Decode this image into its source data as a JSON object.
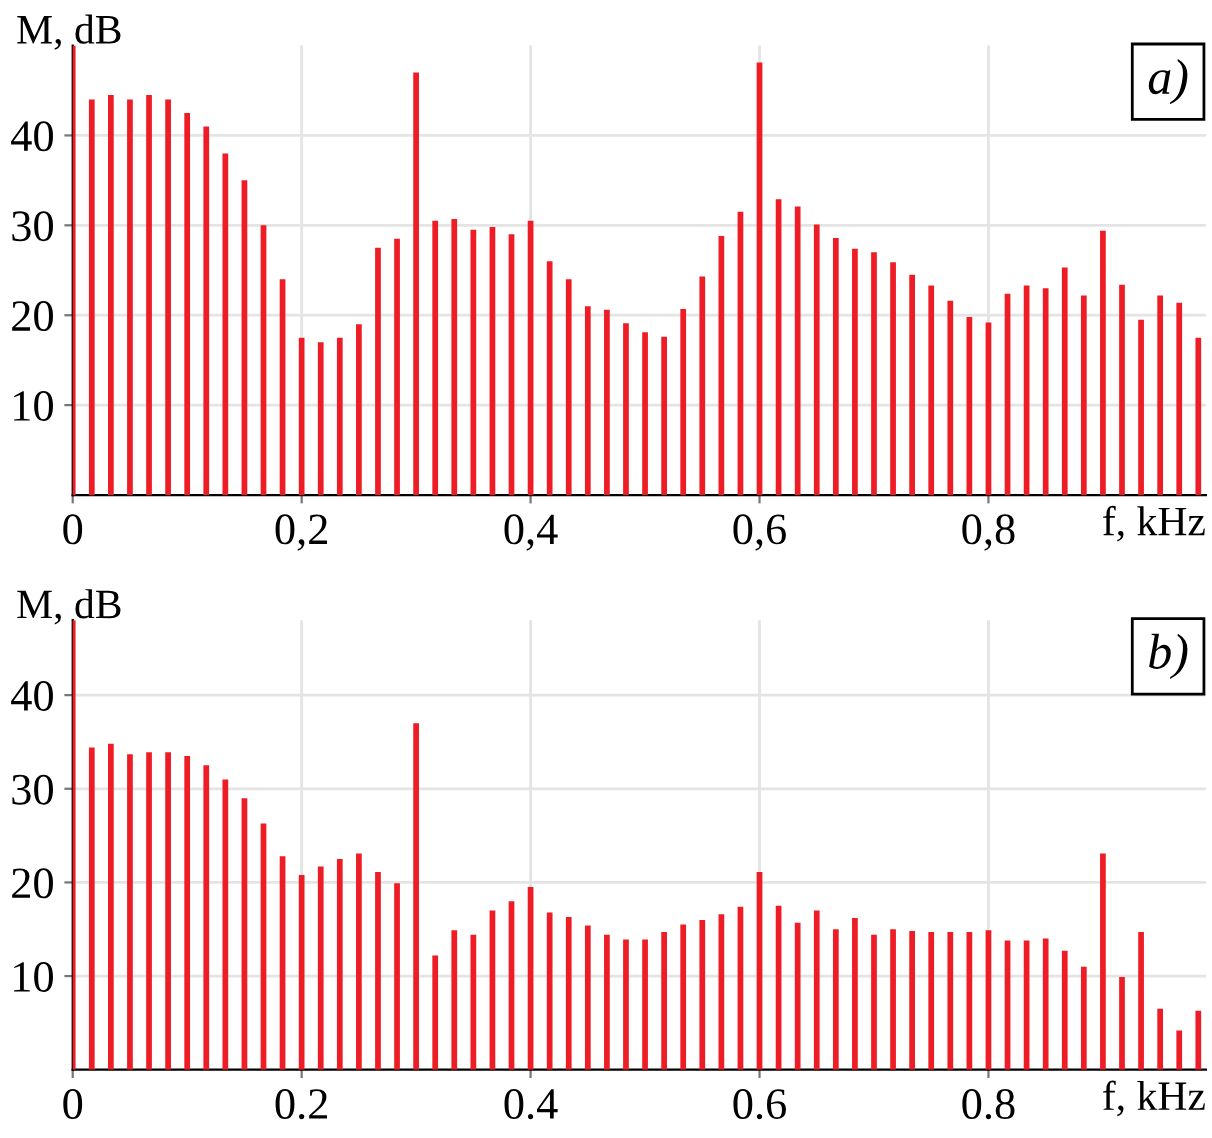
{
  "chart_data": [
    {
      "type": "bar",
      "xlabel": "f, kHz",
      "ylabel": "M, dB",
      "annotations": [
        "a)"
      ],
      "x": [
        0,
        0.01667,
        0.03333,
        0.05,
        0.06667,
        0.08333,
        0.1,
        0.11667,
        0.13333,
        0.15,
        0.16667,
        0.18333,
        0.2,
        0.21667,
        0.23333,
        0.25,
        0.26667,
        0.28333,
        0.3,
        0.31667,
        0.33333,
        0.35,
        0.36667,
        0.38333,
        0.4,
        0.41667,
        0.43333,
        0.45,
        0.46667,
        0.48333,
        0.5,
        0.51667,
        0.53333,
        0.55,
        0.56667,
        0.58333,
        0.6,
        0.61667,
        0.63333,
        0.65,
        0.66667,
        0.68333,
        0.7,
        0.71667,
        0.73333,
        0.75,
        0.76667,
        0.78333,
        0.8,
        0.81667,
        0.83333,
        0.85,
        0.86667,
        0.88333,
        0.9,
        0.91667,
        0.93333,
        0.95,
        0.96667,
        0.98333
      ],
      "values": [
        50,
        44,
        44.5,
        44,
        44.5,
        44,
        42.5,
        41,
        38,
        35,
        30,
        24,
        17.5,
        17,
        17.5,
        19,
        27.5,
        28.5,
        47,
        30.5,
        30.7,
        29.5,
        29.8,
        29,
        30.5,
        26,
        24,
        21,
        20.6,
        19.1,
        18.1,
        17.6,
        20.7,
        24.3,
        28.8,
        31.5,
        48.1,
        32.9,
        32.1,
        30.1,
        28.6,
        27.4,
        27,
        25.9,
        24.5,
        23.3,
        21.6,
        19.8,
        19.2,
        22.4,
        23.3,
        23,
        25.3,
        22.2,
        29.4,
        23.4,
        19.5,
        22.2,
        21.4,
        17.5
      ],
      "color": "#ee1c25",
      "xlim": [
        0,
        0.99
      ],
      "ylim": [
        0,
        50
      ],
      "xticks": [
        0,
        {
          "value": 0.2,
          "label": "0,2"
        },
        {
          "value": 0.4,
          "label": "0,4"
        },
        {
          "value": 0.6,
          "label": "0,6"
        },
        {
          "value": 0.8,
          "label": "0,8"
        }
      ],
      "yticks": [
        10,
        20,
        30,
        40
      ],
      "grid": true
    },
    {
      "type": "bar",
      "xlabel": "f, kHz",
      "ylabel": "M, dB",
      "annotations": [
        "b)"
      ],
      "x": [
        0,
        0.01667,
        0.03333,
        0.05,
        0.06667,
        0.08333,
        0.1,
        0.11667,
        0.13333,
        0.15,
        0.16667,
        0.18333,
        0.2,
        0.21667,
        0.23333,
        0.25,
        0.26667,
        0.28333,
        0.3,
        0.31667,
        0.33333,
        0.35,
        0.36667,
        0.38333,
        0.4,
        0.41667,
        0.43333,
        0.45,
        0.46667,
        0.48333,
        0.5,
        0.51667,
        0.53333,
        0.55,
        0.56667,
        0.58333,
        0.6,
        0.61667,
        0.63333,
        0.65,
        0.66667,
        0.68333,
        0.7,
        0.71667,
        0.73333,
        0.75,
        0.76667,
        0.78333,
        0.8,
        0.81667,
        0.83333,
        0.85,
        0.86667,
        0.88333,
        0.9,
        0.91667,
        0.93333,
        0.95,
        0.96667,
        0.98333
      ],
      "values": [
        48,
        34.4,
        34.8,
        33.7,
        33.9,
        33.9,
        33.5,
        32.5,
        31,
        29,
        26.3,
        22.8,
        20.8,
        21.7,
        22.5,
        23.1,
        21.1,
        19.9,
        37,
        12.2,
        14.9,
        14.4,
        17,
        18,
        19.5,
        16.8,
        16.3,
        15.4,
        14.4,
        13.9,
        13.9,
        14.7,
        15.5,
        16,
        16.6,
        17.4,
        21.1,
        17.5,
        15.7,
        17,
        15,
        16.2,
        14.4,
        15,
        14.8,
        14.7,
        14.7,
        14.7,
        14.9,
        13.8,
        13.8,
        14,
        12.7,
        11,
        23.1,
        9.9,
        14.7,
        6.5,
        4.2,
        6.3
      ],
      "color": "#ee1c25",
      "xlim": [
        0,
        0.99
      ],
      "ylim": [
        0,
        48
      ],
      "xticks": [
        0,
        {
          "value": 0.2,
          "label": "0.2"
        },
        {
          "value": 0.4,
          "label": "0.4"
        },
        {
          "value": 0.6,
          "label": "0.6"
        },
        {
          "value": 0.8,
          "label": "0.8"
        }
      ],
      "yticks": [
        10,
        20,
        30,
        40
      ],
      "grid": true
    }
  ]
}
